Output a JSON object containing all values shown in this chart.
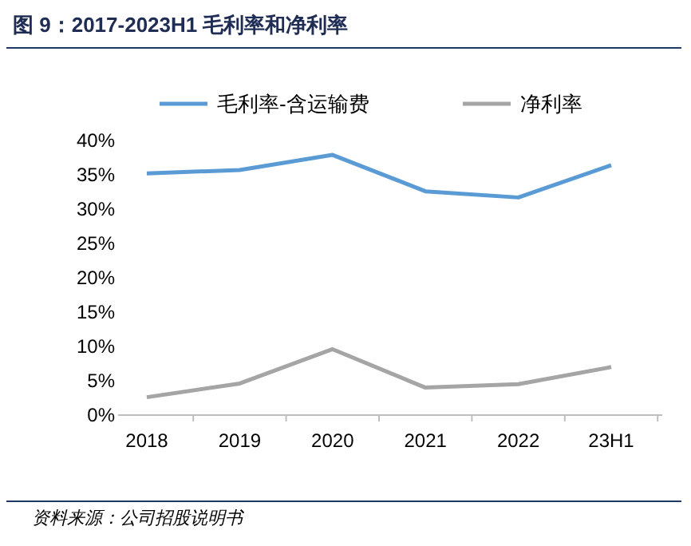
{
  "chart_data": {
    "type": "line",
    "title": "图 9：2017-2023H1 毛利率和净利率",
    "categories": [
      "2018",
      "2019",
      "2020",
      "2021",
      "2022",
      "23H1"
    ],
    "series": [
      {
        "name": "毛利率-含运输费",
        "color": "#5b9bd5",
        "values": [
          35.2,
          35.7,
          37.9,
          32.6,
          31.7,
          36.4
        ]
      },
      {
        "name": "净利率",
        "color": "#a5a5a5",
        "values": [
          2.6,
          4.6,
          9.6,
          4.0,
          4.5,
          7.0
        ]
      }
    ],
    "ylim": [
      0,
      40
    ],
    "yticks": [
      {
        "value": 0,
        "label": "0%"
      },
      {
        "value": 5,
        "label": "5%"
      },
      {
        "value": 10,
        "label": "10%"
      },
      {
        "value": 15,
        "label": "15%"
      },
      {
        "value": 20,
        "label": "20%"
      },
      {
        "value": 25,
        "label": "25%"
      },
      {
        "value": 30,
        "label": "30%"
      },
      {
        "value": 35,
        "label": "35%"
      },
      {
        "value": 40,
        "label": "40%"
      }
    ],
    "grid": false,
    "legend": "top",
    "marker": "none",
    "line_style": "solid",
    "annotations": [
      "资料来源：公司招股说明书"
    ]
  }
}
